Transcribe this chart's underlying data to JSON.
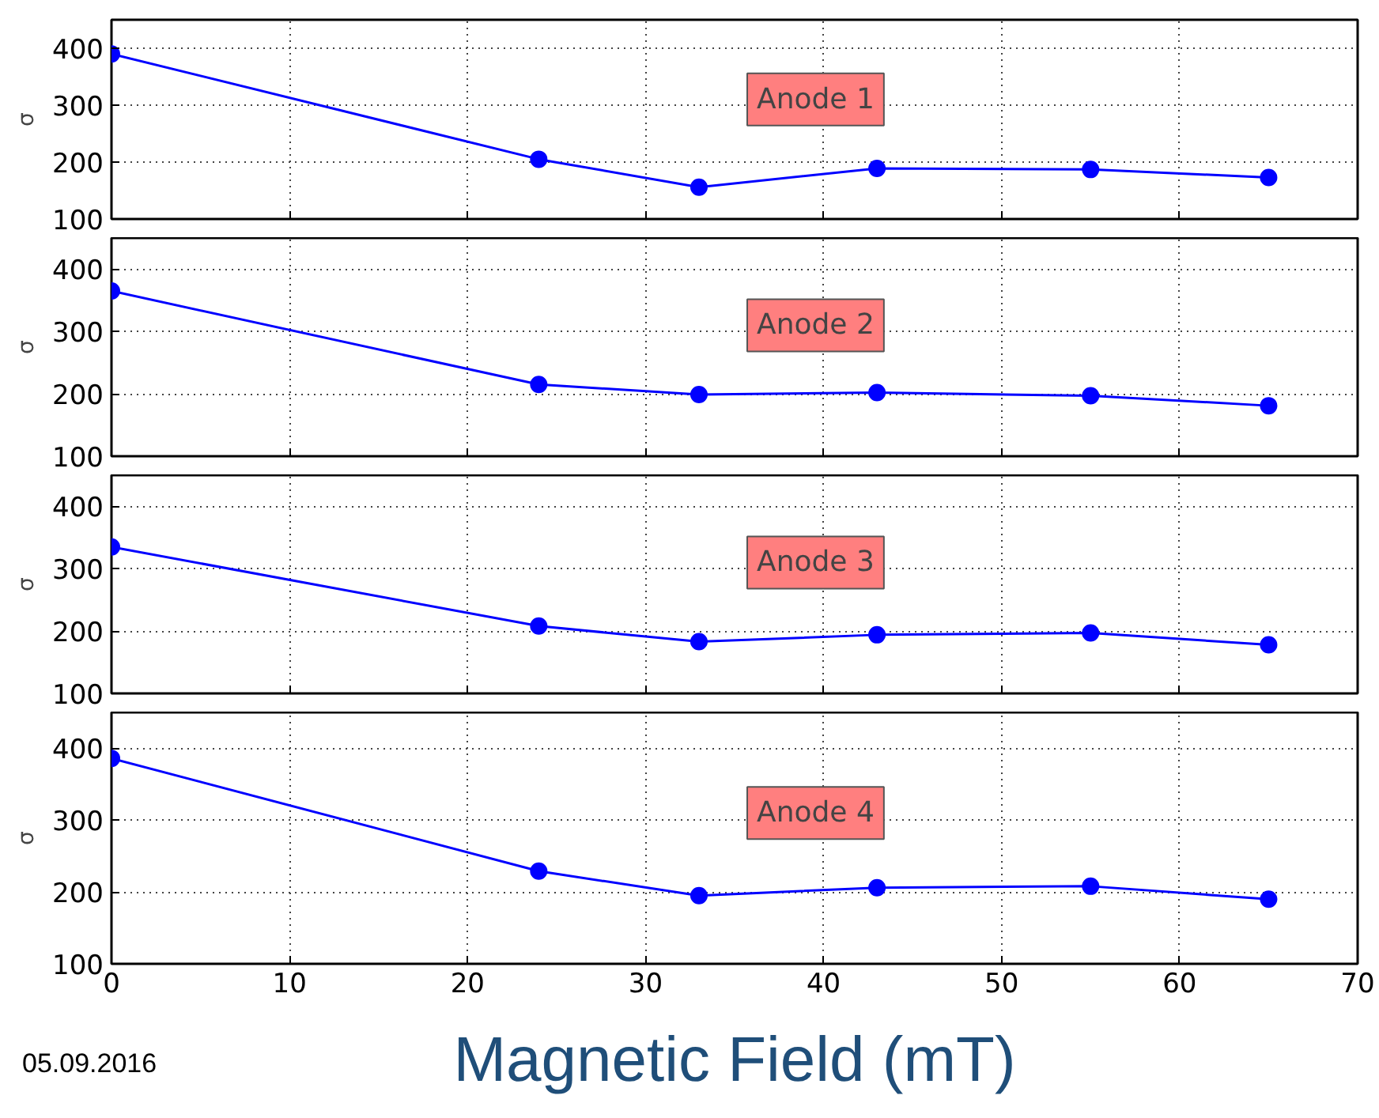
{
  "chart_data": [
    {
      "type": "line",
      "ylabel": "σ",
      "x": [
        0,
        24,
        33,
        43,
        55,
        65
      ],
      "xlim": [
        0,
        70
      ],
      "xticks": [
        0,
        10,
        20,
        30,
        40,
        50,
        60,
        70
      ],
      "ylim": [
        100,
        450
      ],
      "yticks": [
        100,
        200,
        300,
        400
      ],
      "tick_labels": "y",
      "grid": true,
      "marker": "circle",
      "annotations": [
        "Anode 1"
      ],
      "series": [
        {
          "color": "#0000ff",
          "values": [
            390,
            205,
            156,
            189,
            187,
            173
          ]
        }
      ]
    },
    {
      "type": "line",
      "ylabel": "σ",
      "x": [
        0,
        24,
        33,
        43,
        55,
        65
      ],
      "xlim": [
        0,
        70
      ],
      "xticks": [
        0,
        10,
        20,
        30,
        40,
        50,
        60,
        70
      ],
      "ylim": [
        100,
        450
      ],
      "yticks": [
        100,
        200,
        300,
        400
      ],
      "tick_labels": "y",
      "grid": true,
      "marker": "circle",
      "annotations": [
        "Anode 2"
      ],
      "series": [
        {
          "color": "#0000ff",
          "values": [
            365,
            215,
            199,
            202,
            197,
            181
          ]
        }
      ]
    },
    {
      "type": "line",
      "ylabel": "σ",
      "x": [
        0,
        24,
        33,
        43,
        55,
        65
      ],
      "xlim": [
        0,
        70
      ],
      "xticks": [
        0,
        10,
        20,
        30,
        40,
        50,
        60,
        70
      ],
      "ylim": [
        100,
        450
      ],
      "yticks": [
        100,
        200,
        300,
        400
      ],
      "tick_labels": "y",
      "grid": true,
      "marker": "circle",
      "annotations": [
        "Anode 3"
      ],
      "series": [
        {
          "color": "#0000ff",
          "values": [
            335,
            208,
            183,
            194,
            197,
            178
          ]
        }
      ]
    },
    {
      "type": "line",
      "ylabel": "σ",
      "xlabel": "Magnetic Field (mT)",
      "x": [
        0,
        24,
        33,
        43,
        55,
        65
      ],
      "xlim": [
        0,
        70
      ],
      "xticks": [
        0,
        10,
        20,
        30,
        40,
        50,
        60,
        70
      ],
      "ylim": [
        100,
        450
      ],
      "yticks": [
        100,
        200,
        300,
        400
      ],
      "grid": true,
      "marker": "circle",
      "annotations": [
        "Anode 4",
        "05.09.2016"
      ],
      "series": [
        {
          "color": "#0000ff",
          "values": [
            386,
            229,
            195,
            206,
            208,
            190
          ]
        }
      ]
    }
  ]
}
